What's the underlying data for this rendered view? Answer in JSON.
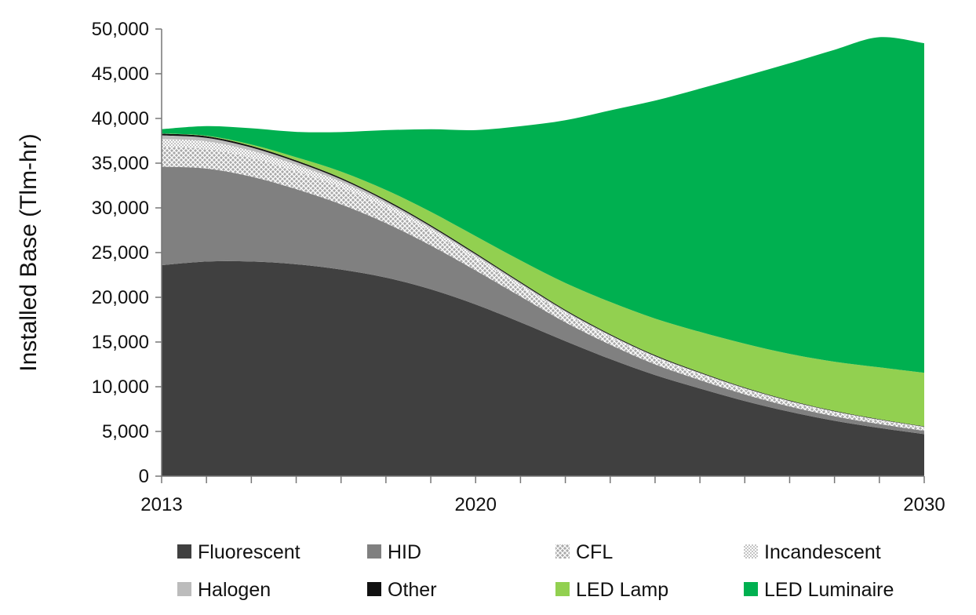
{
  "chart_data": {
    "type": "area",
    "stacked": true,
    "title": "",
    "xlabel": "",
    "ylabel": "Installed Base (Tlm-hr)",
    "x": [
      2013,
      2014,
      2015,
      2016,
      2017,
      2018,
      2019,
      2020,
      2021,
      2022,
      2023,
      2024,
      2025,
      2026,
      2027,
      2028,
      2029,
      2030
    ],
    "xticks": [
      "2013",
      "2020",
      "2030"
    ],
    "xlim": [
      2013,
      2030
    ],
    "ylim": [
      0,
      50000
    ],
    "yticks": [
      "0",
      "5,000",
      "10,000",
      "15,000",
      "20,000",
      "25,000",
      "30,000",
      "35,000",
      "40,000",
      "45,000",
      "50,000"
    ],
    "grid": false,
    "legend_position": "bottom",
    "series": [
      {
        "name": "Fluorescent",
        "color": "#404040",
        "pattern": "solid",
        "values": [
          23600,
          24000,
          24000,
          23700,
          23100,
          22200,
          20900,
          19200,
          17200,
          15100,
          13100,
          11300,
          9800,
          8400,
          7200,
          6200,
          5400,
          4700
        ]
      },
      {
        "name": "HID",
        "color": "#808080",
        "pattern": "solid",
        "values": [
          11000,
          10400,
          9500,
          8400,
          7300,
          6100,
          4900,
          3800,
          2900,
          2100,
          1600,
          1200,
          950,
          750,
          600,
          500,
          430,
          380
        ]
      },
      {
        "name": "CFL",
        "color": "#c8c8c8",
        "pattern": "crosshatch",
        "values": [
          2200,
          2200,
          2100,
          2000,
          1900,
          1700,
          1500,
          1300,
          1100,
          950,
          800,
          700,
          600,
          520,
          460,
          410,
          370,
          340
        ]
      },
      {
        "name": "Incandescent",
        "color": "#d8d8d8",
        "pattern": "dots",
        "values": [
          900,
          850,
          800,
          720,
          620,
          520,
          420,
          340,
          270,
          220,
          180,
          150,
          130,
          110,
          100,
          90,
          80,
          70
        ]
      },
      {
        "name": "Halogen",
        "color": "#bcbcbc",
        "pattern": "solid",
        "values": [
          400,
          380,
          350,
          320,
          280,
          240,
          200,
          170,
          140,
          120,
          100,
          85,
          75,
          65,
          55,
          50,
          45,
          40
        ]
      },
      {
        "name": "Other",
        "color": "#111111",
        "pattern": "solid",
        "values": [
          200,
          190,
          180,
          170,
          160,
          150,
          140,
          130,
          120,
          110,
          100,
          90,
          80,
          70,
          60,
          50,
          45,
          40
        ]
      },
      {
        "name": "LED Lamp",
        "color": "#92d050",
        "pattern": "solid",
        "values": [
          20,
          50,
          150,
          350,
          700,
          1100,
          1500,
          1900,
          2400,
          3000,
          3600,
          4100,
          4500,
          4900,
          5200,
          5500,
          5800,
          6000
        ]
      },
      {
        "name": "LED Luminaire",
        "color": "#00b050",
        "pattern": "solid",
        "values": [
          480,
          1070,
          1820,
          2840,
          4420,
          6680,
          9230,
          11860,
          15000,
          18200,
          21420,
          24370,
          27195,
          29925,
          32495,
          34880,
          36915,
          36840
        ]
      }
    ]
  }
}
